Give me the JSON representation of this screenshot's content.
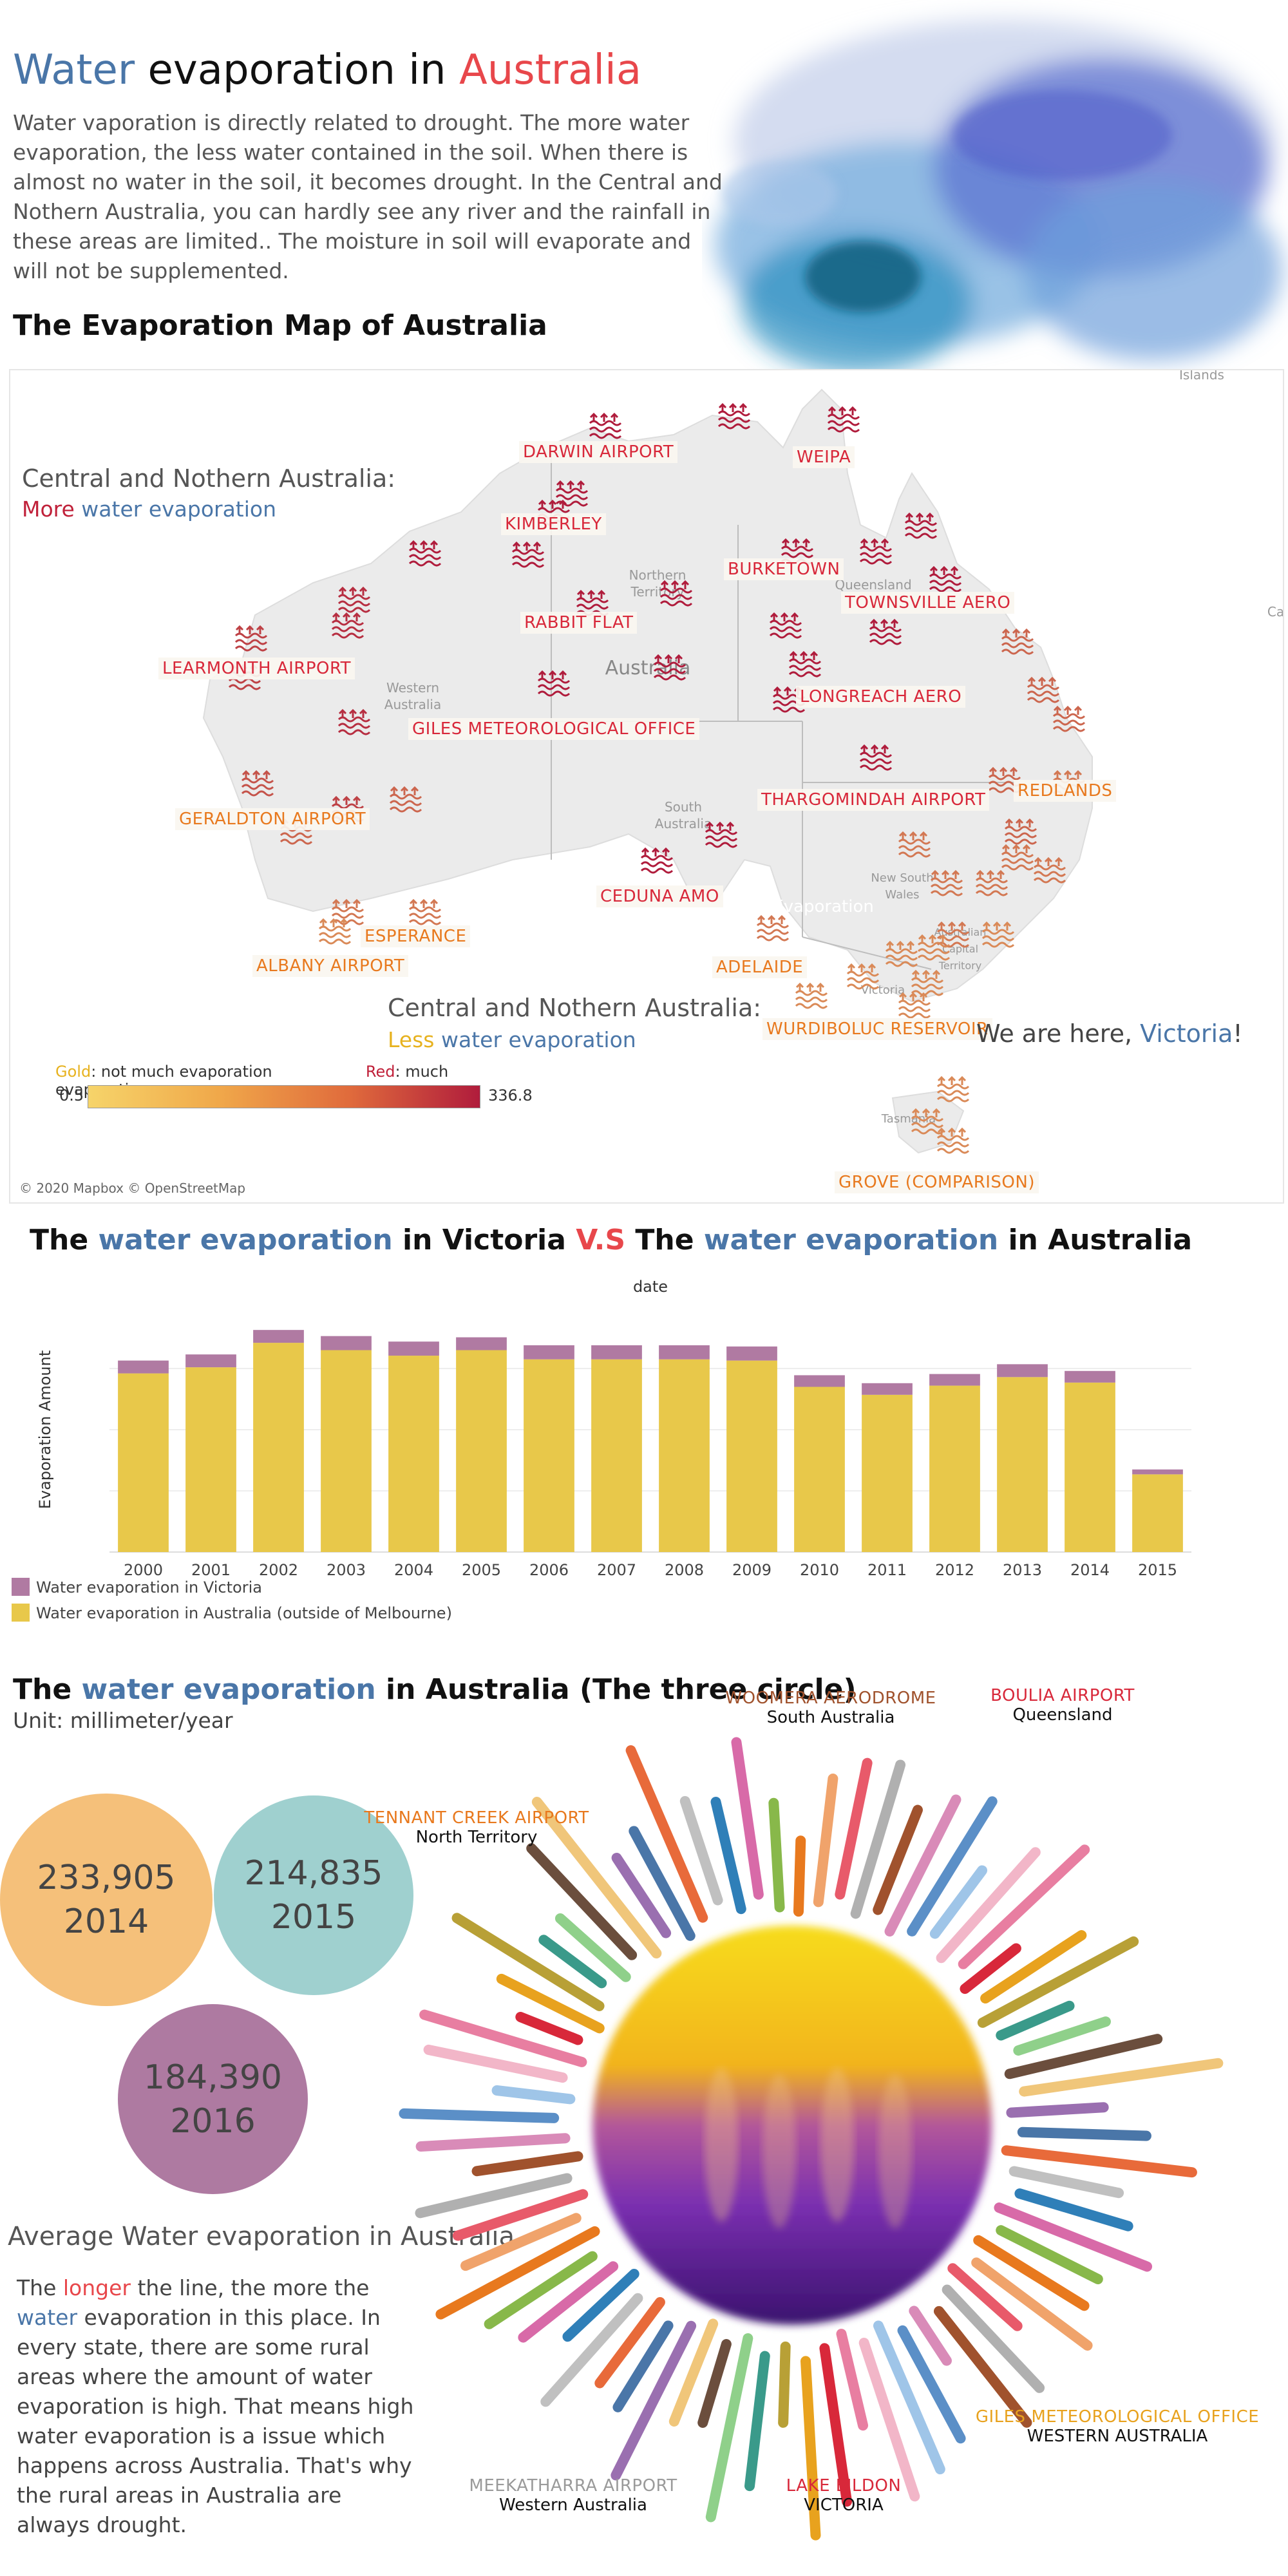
{
  "header": {
    "title_word1": "Water",
    "title_word2": " evaporation in ",
    "title_word3": "Australia",
    "intro": "Water vaporation is directly related to drought. The more water evaporation, the less water contained in the soil. When there is almost no water in the soil, it becomes drought. In the Central and Nothern Australia, you can hardly see any river and the rainfall in these areas are limited.. The moisture in soil will evaporate and will not be supplemented."
  },
  "map": {
    "title": "The Evaporation Map of Australia",
    "callout_top": {
      "head": "Central and Nothern Australia:",
      "more": "More",
      "rest": " water evaporation"
    },
    "callout_bottom": {
      "head": "Central and Nothern Australia:",
      "less": "Less",
      "rest": " water evaporation"
    },
    "here": {
      "prefix": "We are here, ",
      "place": "Victoria",
      "suffix": "!"
    },
    "legend": {
      "gold_word": "Gold",
      "gold_text": ": not much evaporation",
      "red_word": "Red",
      "red_text": ": much evaporation",
      "min": "0.5",
      "max": "336.8"
    },
    "credit": "© 2020 Mapbox © OpenStreetMap",
    "overlay_text": "Water Evaporation",
    "edge_text_islands": "Islands",
    "edge_text_ca": "Ca",
    "colors": {
      "low": "#f6d46a",
      "high": "#b01c3c"
    },
    "regions": {
      "nt": "Northern Territory",
      "qld": "Queensland",
      "wa": "Western Australia",
      "aus": "Australia",
      "sa": "South Australia",
      "nsw": "New South Wales",
      "act": "Australian Capital Territory",
      "vic": "Victoria",
      "tas": "Tasmania"
    },
    "stations": [
      {
        "name": "DARWIN AIRPORT",
        "tone": "red"
      },
      {
        "name": "WEIPA",
        "tone": "red"
      },
      {
        "name": "KIMBERLEY",
        "tone": "red"
      },
      {
        "name": "BURKETOWN",
        "tone": "red"
      },
      {
        "name": "TOWNSVILLE AERO",
        "tone": "red"
      },
      {
        "name": "RABBIT FLAT",
        "tone": "red"
      },
      {
        "name": "LEARMONTH AIRPORT",
        "tone": "red"
      },
      {
        "name": "LONGREACH AERO",
        "tone": "red"
      },
      {
        "name": "GILES METEOROLOGICAL OFFICE",
        "tone": "red"
      },
      {
        "name": "REDLANDS",
        "tone": "orange"
      },
      {
        "name": "THARGOMINDAH AIRPORT",
        "tone": "red"
      },
      {
        "name": "GERALDTON AIRPORT",
        "tone": "orange"
      },
      {
        "name": "CEDUNA AMO",
        "tone": "red"
      },
      {
        "name": "ESPERANCE",
        "tone": "orange"
      },
      {
        "name": "ADELAIDE",
        "tone": "orange"
      },
      {
        "name": "ALBANY AIRPORT",
        "tone": "orange"
      },
      {
        "name": "WURDIBOLUC RESERVOIR",
        "tone": "orange"
      },
      {
        "name": "GROVE (COMPARISON)",
        "tone": "orange"
      }
    ]
  },
  "bar_section": {
    "title_parts": [
      "The ",
      "water evaporation",
      " in Victoria ",
      "V.S",
      " The ",
      "water evaporation",
      " in Australia"
    ]
  },
  "chart_data": {
    "type": "bar",
    "stacked": true,
    "title": "date",
    "xlabel": "",
    "ylabel": "Evaporation Amount",
    "categories": [
      "2000",
      "2001",
      "2002",
      "2003",
      "2004",
      "2005",
      "2006",
      "2007",
      "2008",
      "2009",
      "2010",
      "2011",
      "2012",
      "2013",
      "2014",
      "2015"
    ],
    "series": [
      {
        "name": "Water evaporation in Australia (outside of Melbourne)",
        "color": "#e8c84a",
        "values": [
          292,
          302,
          342,
          330,
          321,
          330,
          315,
          315,
          315,
          313,
          270,
          257,
          272,
          286,
          277,
          127
        ]
      },
      {
        "name": "Water evaporation in Victoria",
        "color": "#b07aa2",
        "values": [
          21,
          21,
          21,
          23,
          23,
          21,
          23,
          23,
          23,
          23,
          19,
          19,
          19,
          21,
          19,
          8
        ]
      }
    ],
    "legend": "bottom-left",
    "ylim": [
      0,
      400
    ],
    "grid": true
  },
  "circles": {
    "title_parts": [
      "The ",
      "water evaporation",
      " in Australia  (The three circle)"
    ],
    "unit": "Unit: millimeter/year",
    "bubbles": [
      {
        "value": "233,905",
        "year": "2014",
        "color": "#f5c07a"
      },
      {
        "value": "214,835",
        "year": "2015",
        "color": "#9fd0cf"
      },
      {
        "value": "184,390",
        "year": "2016",
        "color": "#ae7aa1"
      }
    ],
    "avg_title": "Average Water evaporation in Australia",
    "avg_text": {
      "p1": "The ",
      "longer": "longer",
      "p2": " the line, the more the ",
      "water": "water",
      "p3": " evaporation in this place. In every state, there are some rural areas where the amount of water evaporation is high. That means high water evaporation is a issue which happens across Australia. That's why the rural areas in Australia are always drought."
    },
    "sun_labels": [
      {
        "station": "WOOMERA AERODROME",
        "region": "South Australia",
        "color": "#a0522d"
      },
      {
        "station": "BOULIA AIRPORT",
        "region": "Queensland",
        "color": "#d8283a"
      },
      {
        "station": "TENNANT CREEK AIRPORT",
        "region": "North Territory",
        "color": "#e8791e"
      },
      {
        "station": "GILES METEOROLOGICAL OFFICE",
        "region": "WESTERN AUSTRALIA",
        "color": "#e8a21e"
      },
      {
        "station": "MEEKATHARRA AIRPORT",
        "region": "Western Australia",
        "color": "#9a9a9a"
      },
      {
        "station": "LAKE EILDON",
        "region": "VICTORIA",
        "color": "#d8283a"
      }
    ]
  }
}
